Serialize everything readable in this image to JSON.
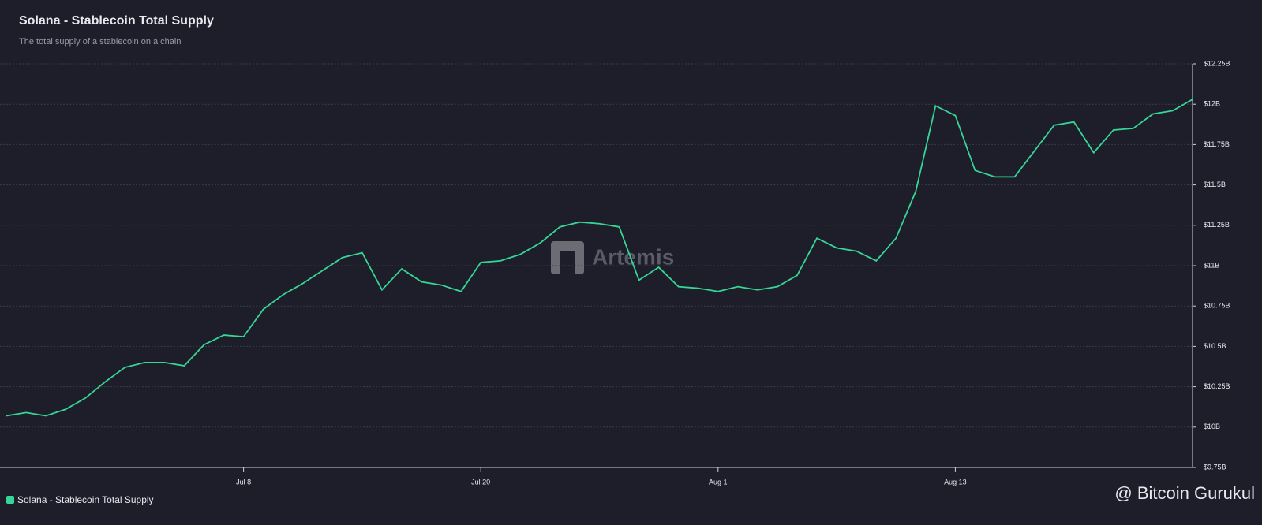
{
  "chart_data": {
    "type": "line",
    "title": "Solana - Stablecoin Total Supply",
    "subtitle": "The total supply of a stablecoin on a chain",
    "watermark": "Artemis",
    "credit": "@ Bitcoin Gurukul",
    "categories": [
      null,
      null,
      null,
      null,
      null,
      null,
      null,
      null,
      null,
      null,
      null,
      null,
      "Jul 8",
      null,
      null,
      null,
      null,
      null,
      null,
      null,
      null,
      null,
      null,
      null,
      "Jul 20",
      null,
      null,
      null,
      null,
      null,
      null,
      null,
      null,
      null,
      null,
      null,
      "Aug 1",
      null,
      null,
      null,
      null,
      null,
      null,
      null,
      null,
      null,
      null,
      null,
      "Aug 13",
      null,
      null,
      null,
      null,
      null,
      null,
      null,
      null,
      null,
      null,
      null,
      null
    ],
    "series": [
      {
        "name": "Solana - Stablecoin Total Supply",
        "color": "#35d696",
        "values": [
          10.07,
          10.09,
          10.07,
          10.11,
          10.18,
          10.28,
          10.37,
          10.4,
          10.4,
          10.38,
          10.51,
          10.57,
          10.56,
          10.73,
          10.82,
          10.89,
          10.97,
          11.05,
          11.08,
          10.85,
          10.98,
          10.9,
          10.88,
          10.84,
          11.02,
          11.03,
          11.07,
          11.14,
          11.24,
          11.27,
          11.26,
          11.24,
          10.91,
          10.99,
          10.87,
          10.86,
          10.84,
          10.87,
          10.85,
          10.87,
          10.94,
          11.17,
          11.11,
          11.09,
          11.03,
          11.17,
          11.46,
          11.99,
          11.93,
          11.59,
          11.55,
          11.55,
          11.71,
          11.87,
          11.89,
          11.7,
          11.84,
          11.85,
          11.94,
          11.96,
          12.03
        ]
      }
    ],
    "ylim": [
      9.75,
      12.25
    ],
    "yticks": [
      {
        "value": 9.75,
        "label": "$9.75B"
      },
      {
        "value": 10,
        "label": "$10B"
      },
      {
        "value": 10.25,
        "label": "$10.25B"
      },
      {
        "value": 10.5,
        "label": "$10.5B"
      },
      {
        "value": 10.75,
        "label": "$10.75B"
      },
      {
        "value": 11,
        "label": "$11B"
      },
      {
        "value": 11.25,
        "label": "$11.25B"
      },
      {
        "value": 11.5,
        "label": "$11.5B"
      },
      {
        "value": 11.75,
        "label": "$11.75B"
      },
      {
        "value": 12,
        "label": "$12B"
      },
      {
        "value": 12.25,
        "label": "$12.25B"
      }
    ],
    "grid": true
  }
}
